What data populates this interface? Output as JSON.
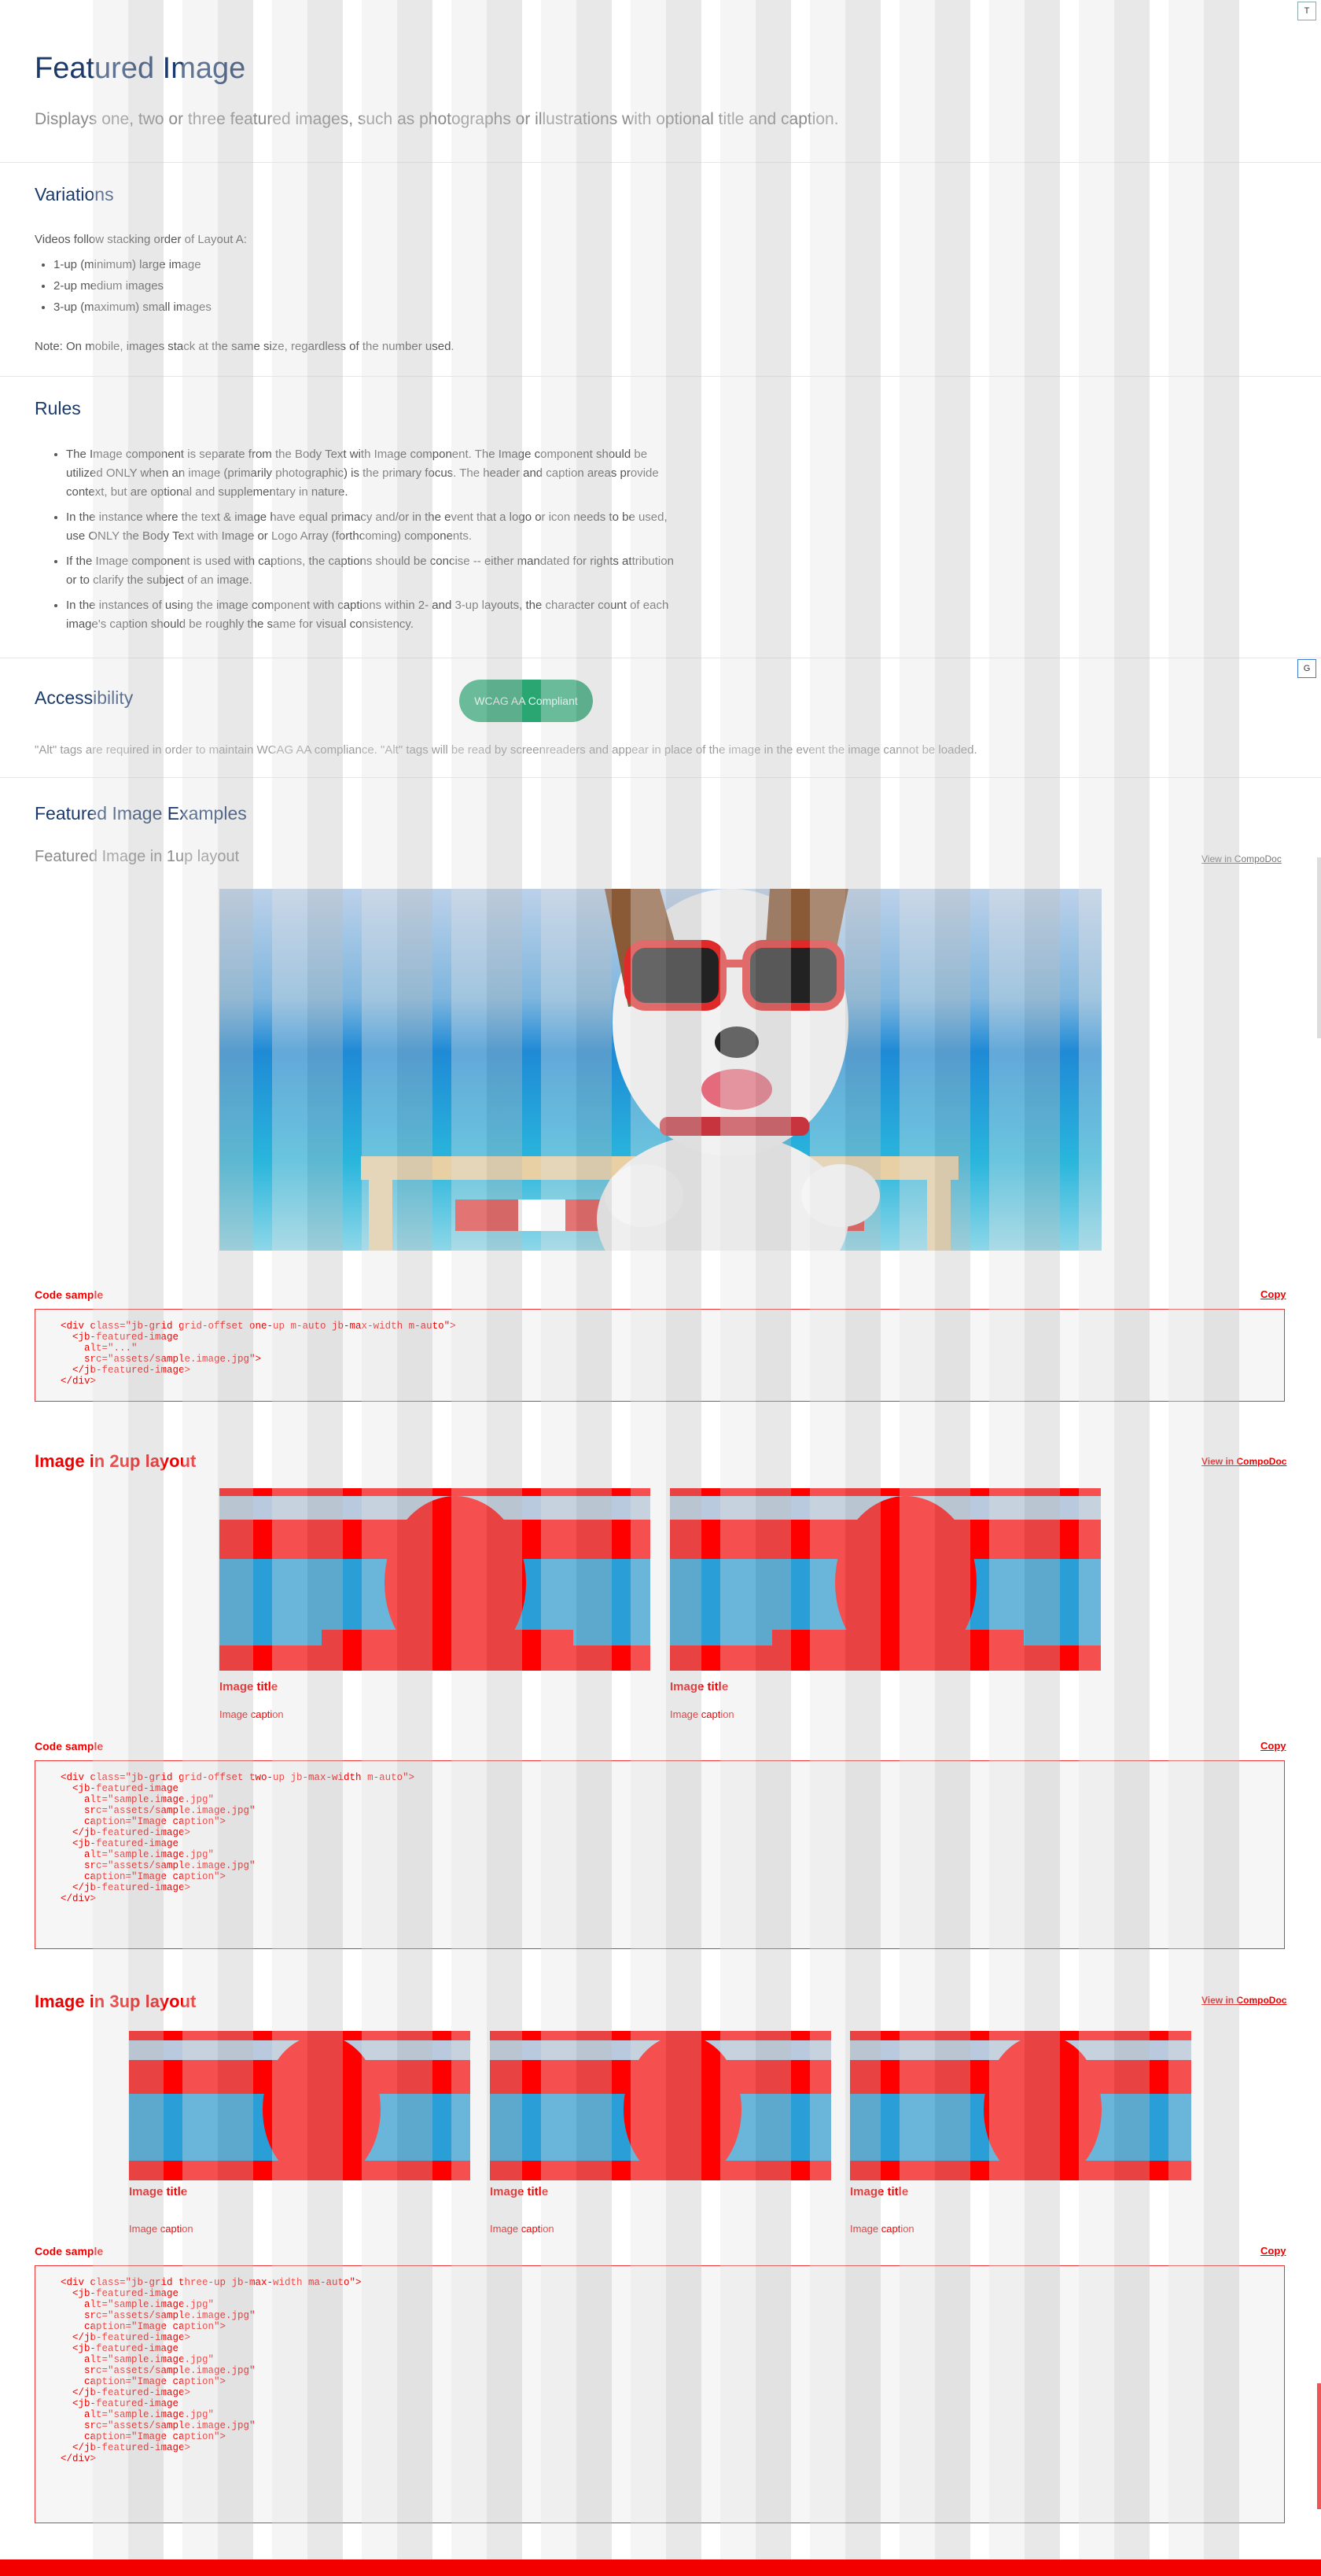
{
  "page": {
    "title": "Featured Image",
    "subtitle": "Displays one, two or three featured images, such as photographs or illustrations with optional title and caption."
  },
  "variations": {
    "title": "Variations",
    "intro": "Videos follow stacking order of Layout A:",
    "items": [
      "1-up (minimum) large image",
      "2-up medium images",
      "3-up (maximum) small images"
    ],
    "note": "Note: On mobile, images stack at the same size, regardless of the number used."
  },
  "rules": {
    "title": "Rules",
    "items": [
      "The Image component is separate from the Body Text with Image component. The Image component should be utilized ONLY when an image (primarily photographic) is the primary focus. The header and caption areas provide context, but are optional and supplementary in nature.",
      "In the instance where the text & image have equal primacy and/or in the event that a logo or icon needs to be used, use ONLY the Body Text with Image or Logo Array (forthcoming) components.",
      "If the Image component is used with captions, the captions should be concise -- either mandated for rights attribution or to clarify the subject of an image.",
      "In the instances of using the image component with captions within 2- and 3-up layouts, the character count of each image's caption should be roughly the same for visual consistency."
    ]
  },
  "accessibility": {
    "title": "Accessibility",
    "badge": "WCAG AA Compliant",
    "note": "\"Alt\" tags are required in order to maintain WCAG AA compliance. \"Alt\" tags will be read by screenreaders and appear in place of the image in the event the image cannot be loaded."
  },
  "examples": {
    "title": "Featured Image Examples",
    "view_link": "View in CompoDoc",
    "code_label": "Code sample",
    "copy_label": "Copy",
    "one_up": {
      "title": "Featured Image in 1up layout",
      "code": "<div class=\"jb-grid grid-offset one-up m-auto jb-max-width m-auto\">\n  <jb-featured-image\n    alt=\"...\"\n    src=\"assets/sample.image.jpg\">\n  </jb-featured-image>\n</div>"
    },
    "two_up": {
      "title": "Image in 2up layout",
      "image_title": "Image title",
      "image_caption": "Image caption",
      "code": "<div class=\"jb-grid grid-offset two-up jb-max-width m-auto\">\n  <jb-featured-image\n    alt=\"sample.image.jpg\"\n    src=\"assets/sample.image.jpg\"\n    caption=\"Image caption\">\n  </jb-featured-image>\n  <jb-featured-image\n    alt=\"sample.image.jpg\"\n    src=\"assets/sample.image.jpg\"\n    caption=\"Image caption\">\n  </jb-featured-image>\n</div>"
    },
    "three_up": {
      "title": "Image in 3up layout",
      "image_title": "Image title",
      "image_caption": "Image caption",
      "code": "<div class=\"jb-grid three-up jb-max-width ma-auto\">\n  <jb-featured-image\n    alt=\"sample.image.jpg\"\n    src=\"assets/sample.image.jpg\"\n    caption=\"Image caption\">\n  </jb-featured-image>\n  <jb-featured-image\n    alt=\"sample.image.jpg\"\n    src=\"assets/sample.image.jpg\"\n    caption=\"Image caption\">\n  </jb-featured-image>\n  <jb-featured-image\n    alt=\"sample.image.jpg\"\n    src=\"assets/sample.image.jpg\"\n    caption=\"Image caption\">\n  </jb-featured-image>\n</div>"
    }
  },
  "side_tabs": {
    "top": "T",
    "g": "G"
  },
  "colors": {
    "accent_blue": "#1b3a6b",
    "badge_green": "#2aa673",
    "debug_red": "#ee0000"
  }
}
